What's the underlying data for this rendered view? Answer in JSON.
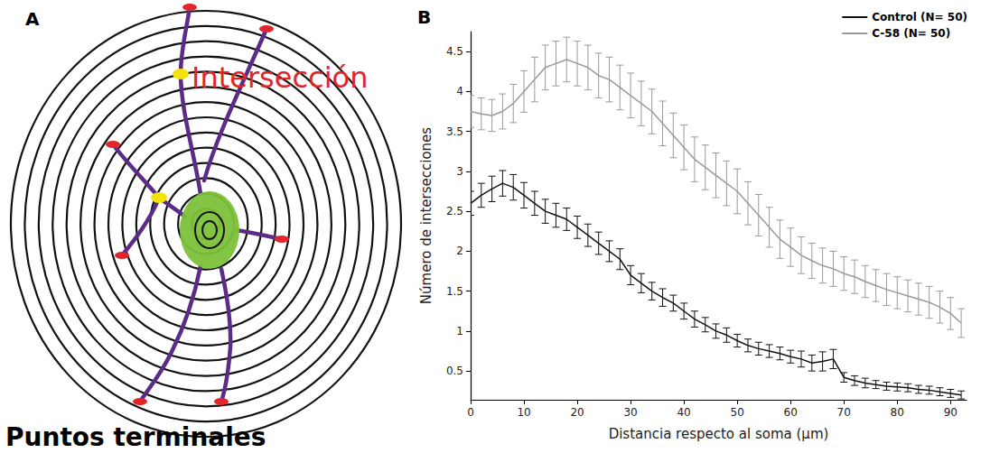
{
  "diagram": {
    "panel_label": "A",
    "labels": {
      "intersection": "Intersección",
      "endpoints": "Puntos terminales"
    }
  },
  "chart_data": {
    "type": "line",
    "panel_label": "B",
    "x_label": "Distancia respecto al soma (µm)",
    "y_label": "Número de intersecciones",
    "x": [
      0,
      2,
      4,
      6,
      8,
      10,
      12,
      14,
      16,
      18,
      20,
      22,
      24,
      26,
      28,
      30,
      32,
      34,
      36,
      38,
      40,
      42,
      44,
      46,
      48,
      50,
      52,
      54,
      56,
      58,
      60,
      62,
      64,
      66,
      68,
      70,
      72,
      74,
      76,
      78,
      80,
      82,
      84,
      86,
      88,
      90,
      92
    ],
    "series": [
      {
        "name": "Control (N= 50)",
        "color": "#111111",
        "values": [
          2.6,
          2.7,
          2.78,
          2.85,
          2.8,
          2.7,
          2.6,
          2.5,
          2.45,
          2.4,
          2.3,
          2.2,
          2.1,
          2.0,
          1.9,
          1.7,
          1.6,
          1.5,
          1.42,
          1.35,
          1.25,
          1.15,
          1.08,
          1.0,
          0.95,
          0.88,
          0.82,
          0.78,
          0.75,
          0.72,
          0.68,
          0.65,
          0.6,
          0.62,
          0.65,
          0.42,
          0.38,
          0.35,
          0.33,
          0.31,
          0.3,
          0.29,
          0.27,
          0.26,
          0.24,
          0.22,
          0.2
        ],
        "errors": [
          0.15,
          0.15,
          0.16,
          0.16,
          0.16,
          0.16,
          0.15,
          0.15,
          0.15,
          0.14,
          0.14,
          0.14,
          0.14,
          0.13,
          0.13,
          0.12,
          0.12,
          0.11,
          0.11,
          0.1,
          0.1,
          0.1,
          0.09,
          0.09,
          0.09,
          0.08,
          0.08,
          0.08,
          0.08,
          0.08,
          0.08,
          0.1,
          0.1,
          0.12,
          0.12,
          0.06,
          0.06,
          0.06,
          0.05,
          0.05,
          0.05,
          0.05,
          0.05,
          0.05,
          0.05,
          0.05,
          0.05
        ]
      },
      {
        "name": "C-58 (N= 50)",
        "color": "#9a9a9a",
        "values": [
          3.75,
          3.72,
          3.7,
          3.75,
          3.85,
          4.0,
          4.15,
          4.3,
          4.35,
          4.4,
          4.35,
          4.3,
          4.2,
          4.15,
          4.05,
          3.95,
          3.85,
          3.75,
          3.6,
          3.45,
          3.3,
          3.15,
          3.05,
          2.95,
          2.85,
          2.75,
          2.6,
          2.45,
          2.3,
          2.15,
          2.05,
          1.95,
          1.88,
          1.82,
          1.78,
          1.72,
          1.68,
          1.62,
          1.57,
          1.52,
          1.48,
          1.44,
          1.4,
          1.36,
          1.3,
          1.22,
          1.1
        ],
        "errors": [
          0.2,
          0.2,
          0.2,
          0.22,
          0.24,
          0.26,
          0.28,
          0.28,
          0.28,
          0.28,
          0.28,
          0.28,
          0.28,
          0.28,
          0.28,
          0.28,
          0.28,
          0.28,
          0.28,
          0.28,
          0.28,
          0.28,
          0.28,
          0.28,
          0.28,
          0.28,
          0.27,
          0.26,
          0.25,
          0.24,
          0.24,
          0.23,
          0.22,
          0.22,
          0.22,
          0.21,
          0.21,
          0.2,
          0.2,
          0.2,
          0.2,
          0.2,
          0.2,
          0.2,
          0.2,
          0.2,
          0.18
        ]
      }
    ],
    "xlim": [
      0,
      93
    ],
    "xticks": [
      0,
      10,
      20,
      30,
      40,
      50,
      60,
      70,
      80,
      90
    ],
    "ylim": [
      0.14,
      4.75
    ],
    "yticks": [
      0.5,
      1,
      1.5,
      2,
      2.5,
      3,
      3.5,
      4,
      4.5
    ],
    "grid": false,
    "legend": "top-right"
  }
}
